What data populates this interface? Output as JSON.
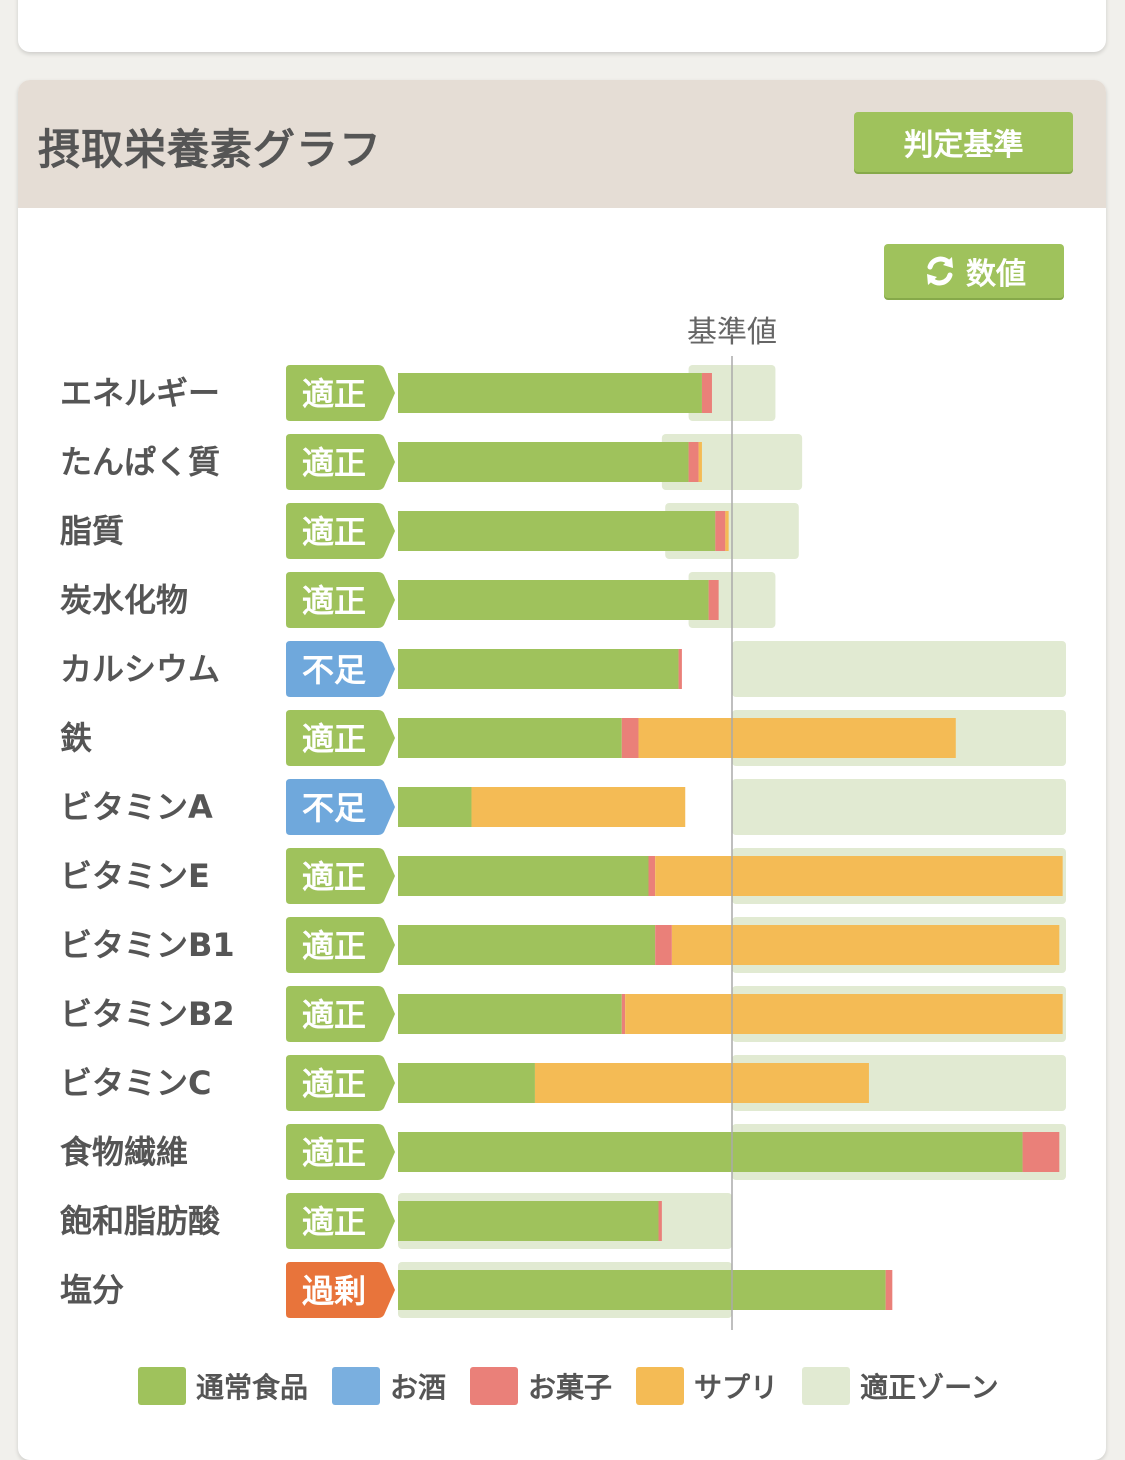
{
  "header": {
    "title": "摂取栄養素グラフ",
    "criteria_button": "判定基準"
  },
  "toolbar": {
    "values_button": "数値",
    "values_icon": "refresh-icon"
  },
  "chart_data": {
    "type": "bar",
    "orientation": "horizontal",
    "stacked": true,
    "reference_label": "基準値",
    "reference_value": 100,
    "x_range": [
      0,
      200
    ],
    "status_colors": {
      "適正": "#9fc25c",
      "不足": "#6fa8dc",
      "過剰": "#e8743b"
    },
    "series": [
      {
        "name": "通常食品",
        "color": "#9fc25c"
      },
      {
        "name": "お酒",
        "color": "#7aafdf"
      },
      {
        "name": "お菓子",
        "color": "#ea8079"
      },
      {
        "name": "サプリ",
        "color": "#f4bb55"
      },
      {
        "name": "適正ゾーン",
        "color": "#e1ead2"
      }
    ],
    "rows": [
      {
        "label": "エネルギー",
        "status": "適正",
        "normal": 91,
        "alcohol": 0,
        "snack": 3,
        "supplement": 0,
        "zone": [
          87,
          113
        ]
      },
      {
        "label": "たんぱく質",
        "status": "適正",
        "normal": 87,
        "alcohol": 0,
        "snack": 3,
        "supplement": 1,
        "zone": [
          79,
          121
        ]
      },
      {
        "label": "脂質",
        "status": "適正",
        "normal": 95,
        "alcohol": 0,
        "snack": 3,
        "supplement": 1,
        "zone": [
          80,
          120
        ]
      },
      {
        "label": "炭水化物",
        "status": "適正",
        "normal": 93,
        "alcohol": 0,
        "snack": 3,
        "supplement": 0,
        "zone": [
          87,
          113
        ]
      },
      {
        "label": "カルシウム",
        "status": "不足",
        "normal": 84,
        "alcohol": 0,
        "snack": 1,
        "supplement": 0,
        "zone": [
          100,
          200
        ]
      },
      {
        "label": "鉄",
        "status": "適正",
        "normal": 67,
        "alcohol": 0,
        "snack": 5,
        "supplement": 95,
        "zone": [
          100,
          200
        ]
      },
      {
        "label": "ビタミンA",
        "status": "不足",
        "normal": 22,
        "alcohol": 0,
        "snack": 0,
        "supplement": 64,
        "zone": [
          100,
          200
        ]
      },
      {
        "label": "ビタミンE",
        "status": "適正",
        "normal": 75,
        "alcohol": 0,
        "snack": 2,
        "supplement": 122,
        "zone": [
          100,
          200
        ]
      },
      {
        "label": "ビタミンB1",
        "status": "適正",
        "normal": 77,
        "alcohol": 0,
        "snack": 5,
        "supplement": 116,
        "zone": [
          100,
          200
        ]
      },
      {
        "label": "ビタミンB2",
        "status": "適正",
        "normal": 67,
        "alcohol": 0,
        "snack": 1,
        "supplement": 131,
        "zone": [
          100,
          200
        ]
      },
      {
        "label": "ビタミンC",
        "status": "適正",
        "normal": 41,
        "alcohol": 0,
        "snack": 0,
        "supplement": 100,
        "zone": [
          100,
          200
        ]
      },
      {
        "label": "食物繊維",
        "status": "適正",
        "normal": 187,
        "alcohol": 0,
        "snack": 11,
        "supplement": 0,
        "zone": [
          100,
          200
        ]
      },
      {
        "label": "飽和脂肪酸",
        "status": "適正",
        "normal": 78,
        "alcohol": 0,
        "snack": 1,
        "supplement": 0,
        "zone": [
          0,
          100
        ]
      },
      {
        "label": "塩分",
        "status": "過剰",
        "normal": 146,
        "alcohol": 0,
        "snack": 2,
        "supplement": 0,
        "zone": [
          0,
          100
        ]
      }
    ]
  }
}
